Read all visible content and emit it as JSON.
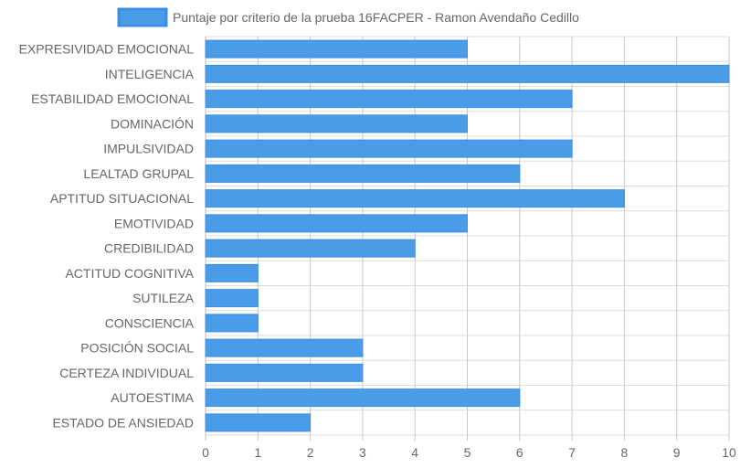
{
  "chart_data": {
    "type": "bar",
    "orientation": "horizontal",
    "categories": [
      "EXPRESIVIDAD EMOCIONAL",
      "INTELIGENCIA",
      "ESTABILIDAD EMOCIONAL",
      "DOMINACIÓN",
      "IMPULSIVIDAD",
      "LEALTAD GRUPAL",
      "APTITUD SITUACIONAL",
      "EMOTIVIDAD",
      "CREDIBILIDAD",
      "ACTITUD COGNITIVA",
      "SUTILEZA",
      "CONSCIENCIA",
      "POSICIÓN SOCIAL",
      "CERTEZA INDIVIDUAL",
      "AUTOESTIMA",
      "ESTADO DE ANSIEDAD"
    ],
    "series": [
      {
        "name": "Puntaje por criterio de la prueba 16FACPER - Ramon Avendaño Cedillo",
        "values": [
          5,
          10,
          7,
          5,
          7,
          6,
          8,
          5,
          4,
          1,
          1,
          1,
          3,
          3,
          6,
          2
        ]
      }
    ],
    "xlim": [
      0,
      10
    ],
    "xticks": [
      "0",
      "1",
      "2",
      "3",
      "4",
      "5",
      "6",
      "7",
      "8",
      "9",
      "10"
    ],
    "grid": true,
    "legend_position": "top-center",
    "colors": {
      "bar_fill": "#4a9be8",
      "bar_stroke": "#3b8ee0",
      "grid": "#dddddd",
      "text": "#666666"
    }
  }
}
